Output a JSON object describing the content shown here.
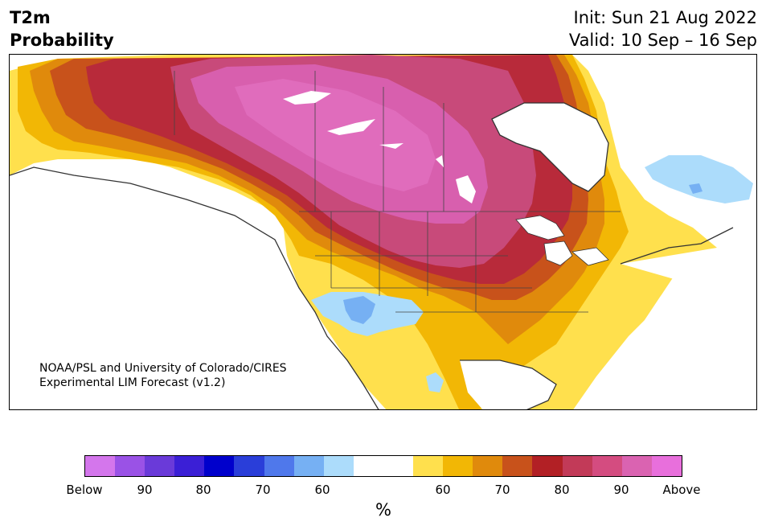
{
  "title": {
    "variable": "T2m",
    "kind": "Probability",
    "init": "Init: Sun 21 Aug 2022",
    "valid": "Valid: 10 Sep – 16 Sep"
  },
  "credit": {
    "line1": "NOAA/PSL and University of Colorado/CIRES",
    "line2": "Experimental LIM Forecast (v1.2)"
  },
  "colorbar": {
    "unit": "%",
    "colors": [
      "#d476ec",
      "#9a52e6",
      "#6a3ad9",
      "#3b1fd6",
      "#0000cc",
      "#2a3ed9",
      "#4f78eb",
      "#76b0f3",
      "#acdcfb",
      "#ffffff",
      "#ffffff",
      "#ffe04d",
      "#f2b705",
      "#e08a0c",
      "#c8521b",
      "#b22025",
      "#c23a58",
      "#d44c80",
      "#da63b1",
      "#e86fdc"
    ],
    "ticks": [
      "Below",
      "90",
      "80",
      "70",
      "60",
      "60",
      "70",
      "80",
      "90",
      "Above"
    ]
  },
  "map": {
    "region": "North America",
    "palette": {
      "above_90": "#d85fae",
      "above_80": "#c84a7a",
      "above_75": "#b82a3a",
      "above_70": "#c8521b",
      "above_65": "#e08a0c",
      "above_60": "#f2b705",
      "above_55": "#ffe04d",
      "below_55": "#acdcfb",
      "below_60": "#76b0f3",
      "neutral": "#ffffff"
    }
  }
}
